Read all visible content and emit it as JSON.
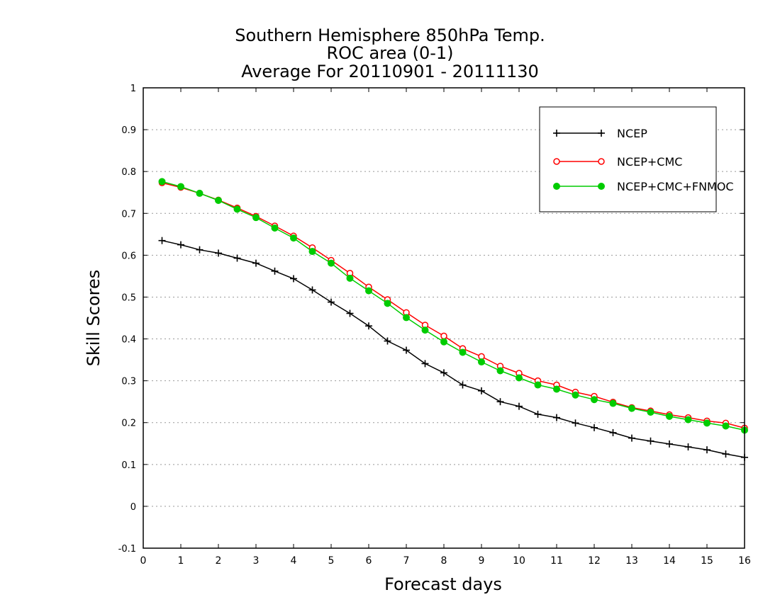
{
  "chart_data": {
    "type": "line",
    "title": [
      "Southern Hemisphere 850hPa Temp.",
      "ROC area (0-1)",
      "Average For 20110901 - 20111130"
    ],
    "xlabel": "Forecast days",
    "ylabel": "Skill Scores",
    "xlim": [
      0,
      16
    ],
    "ylim": [
      -0.1,
      1
    ],
    "x_ticks": [
      0,
      1,
      2,
      3,
      4,
      5,
      6,
      7,
      8,
      9,
      10,
      11,
      12,
      13,
      14,
      15,
      16
    ],
    "y_ticks": [
      -0.1,
      0,
      0.1,
      0.2,
      0.3,
      0.4,
      0.5,
      0.6,
      0.7,
      0.8,
      0.9,
      1
    ],
    "y_tick_labels": [
      "-0.1",
      "0",
      "0.1",
      "0.2",
      "0.3",
      "0.4",
      "0.5",
      "0.6",
      "0.7",
      "0.8",
      "0.9",
      "1"
    ],
    "grid": "horizontal-dotted",
    "legend_position": "top-right",
    "x": [
      0.5,
      1,
      1.5,
      2,
      2.5,
      3,
      3.5,
      4,
      4.5,
      5,
      5.5,
      6,
      6.5,
      7,
      7.5,
      8,
      8.5,
      9,
      9.5,
      10,
      10.5,
      11,
      11.5,
      12,
      12.5,
      13,
      13.5,
      14,
      14.5,
      15,
      15.5,
      16
    ],
    "series": [
      {
        "name": "NCEP",
        "color": "#000000",
        "marker": "plus",
        "values": [
          0.635,
          0.625,
          0.613,
          0.605,
          0.593,
          0.581,
          0.562,
          0.544,
          0.517,
          0.488,
          0.461,
          0.431,
          0.395,
          0.373,
          0.341,
          0.319,
          0.29,
          0.276,
          0.25,
          0.239,
          0.22,
          0.212,
          0.199,
          0.188,
          0.176,
          0.163,
          0.156,
          0.149,
          0.142,
          0.135,
          0.125,
          0.117
        ]
      },
      {
        "name": "NCEP+CMC",
        "color": "#ff0000",
        "marker": "open-circle",
        "values": [
          0.773,
          0.762,
          0.748,
          0.732,
          0.713,
          0.693,
          0.67,
          0.646,
          0.618,
          0.588,
          0.557,
          0.524,
          0.494,
          0.463,
          0.433,
          0.407,
          0.377,
          0.358,
          0.335,
          0.318,
          0.3,
          0.29,
          0.273,
          0.263,
          0.249,
          0.236,
          0.228,
          0.219,
          0.212,
          0.204,
          0.199,
          0.187
        ]
      },
      {
        "name": "NCEP+CMC+FNMOC",
        "color": "#00cc00",
        "marker": "filled-circle",
        "values": [
          0.776,
          0.764,
          0.748,
          0.731,
          0.71,
          0.69,
          0.665,
          0.641,
          0.609,
          0.581,
          0.545,
          0.515,
          0.485,
          0.451,
          0.421,
          0.393,
          0.368,
          0.345,
          0.324,
          0.307,
          0.29,
          0.28,
          0.266,
          0.255,
          0.246,
          0.234,
          0.225,
          0.215,
          0.207,
          0.199,
          0.192,
          0.182
        ]
      }
    ]
  }
}
